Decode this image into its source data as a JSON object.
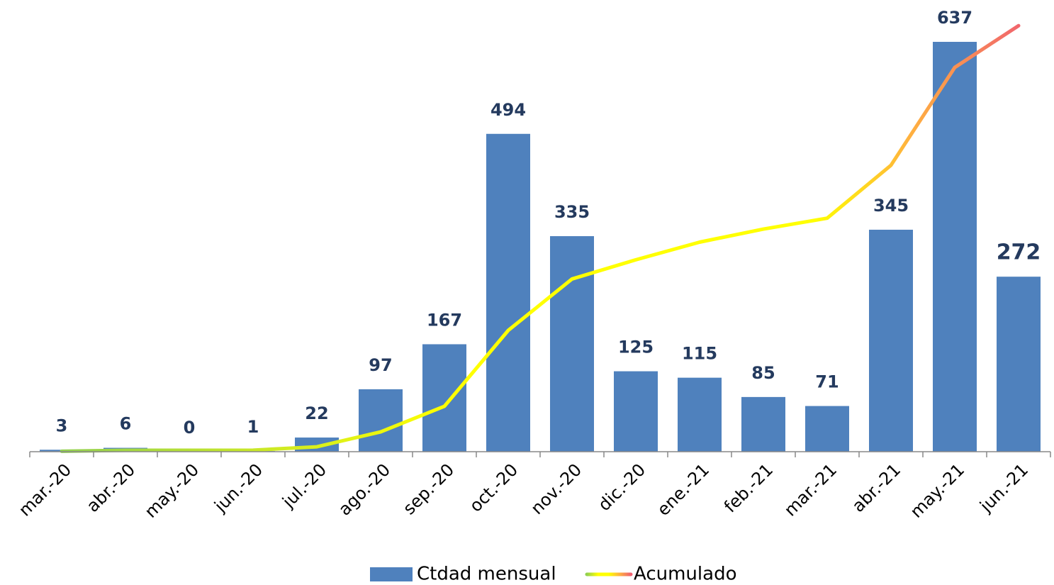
{
  "chart_data": {
    "type": "bar+line",
    "categories": [
      "mar.-20",
      "abr.-20",
      "may.-20",
      "jun.-20",
      "jul.-20",
      "ago.-20",
      "sep.-20",
      "oct.-20",
      "nov.-20",
      "dic.-20",
      "ene.-21",
      "feb.-21",
      "mar.-21",
      "abr.-21",
      "may.-21",
      "jun.-21"
    ],
    "series": [
      {
        "name": "Ctdad mensual",
        "type": "bar",
        "color": "#4f81bd",
        "values": [
          3,
          6,
          0,
          1,
          22,
          97,
          167,
          494,
          335,
          125,
          115,
          85,
          71,
          345,
          637,
          272
        ]
      },
      {
        "name": "Acumulado",
        "type": "line",
        "axis": "y2",
        "color": [
          "#92d050",
          "#ffff00",
          "#ffff00",
          "#ffb040",
          "#f06070"
        ],
        "values": [
          3,
          9,
          9,
          10,
          32,
          129,
          296,
          790,
          1125,
          1250,
          1365,
          1450,
          1521,
          1866,
          2503,
          2775
        ]
      }
    ],
    "ylim": [
      0,
      680
    ],
    "y2lim": [
      0,
      2850
    ]
  }
}
